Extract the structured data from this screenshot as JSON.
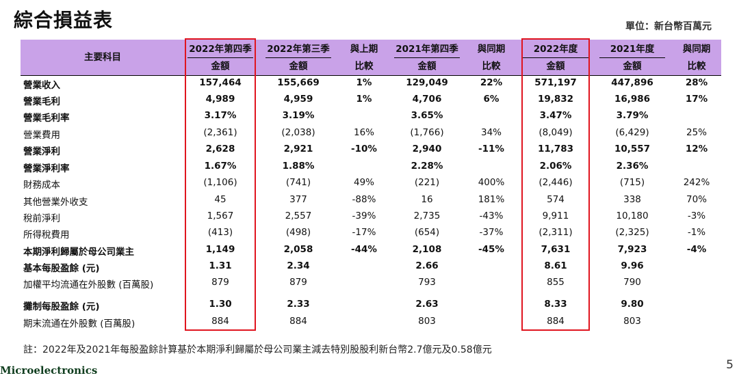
{
  "title": "綜合損益表",
  "unit": "單位：新台幣百萬元",
  "header": {
    "item": "主要科目",
    "amount": "金額",
    "columns": [
      {
        "top": "2022年第四季",
        "bottom": "金額"
      },
      {
        "top": "2022年第三季",
        "bottom": "金額"
      },
      {
        "top": "與上期",
        "bottom": "比較"
      },
      {
        "top": "2021年第四季",
        "bottom": "金額"
      },
      {
        "top": "與同期",
        "bottom": "比較"
      },
      {
        "top": "2022年度",
        "bottom": "金額"
      },
      {
        "top": "2021年度",
        "bottom": "金額"
      },
      {
        "top": "與同期",
        "bottom": "比較"
      }
    ]
  },
  "rows": [
    {
      "label": "營業收入",
      "bold": true,
      "values": [
        "157,464",
        "155,669",
        "1%",
        "129,049",
        "22%",
        "571,197",
        "447,896",
        "28%"
      ]
    },
    {
      "label": "營業毛利",
      "bold": true,
      "values": [
        "4,989",
        "4,959",
        "1%",
        "4,706",
        "6%",
        "19,832",
        "16,986",
        "17%"
      ]
    },
    {
      "label": "營業毛利率",
      "bold": true,
      "values": [
        "3.17%",
        "3.19%",
        "",
        "3.65%",
        "",
        "3.47%",
        "3.79%",
        ""
      ]
    },
    {
      "label": "營業費用",
      "bold": false,
      "values": [
        "(2,361)",
        "(2,038)",
        "16%",
        "(1,766)",
        "34%",
        "(8,049)",
        "(6,429)",
        "25%"
      ]
    },
    {
      "label": "營業淨利",
      "bold": true,
      "values": [
        "2,628",
        "2,921",
        "-10%",
        "2,940",
        "-11%",
        "11,783",
        "10,557",
        "12%"
      ]
    },
    {
      "label": "營業淨利率",
      "bold": true,
      "values": [
        "1.67%",
        "1.88%",
        "",
        "2.28%",
        "",
        "2.06%",
        "2.36%",
        ""
      ]
    },
    {
      "label": "財務成本",
      "bold": false,
      "values": [
        "(1,106)",
        "(741)",
        "49%",
        "(221)",
        "400%",
        "(2,446)",
        "(715)",
        "242%"
      ]
    },
    {
      "label": "其他營業外收支",
      "bold": false,
      "values": [
        "45",
        "377",
        "-88%",
        "16",
        "181%",
        "574",
        "338",
        "70%"
      ]
    },
    {
      "label": "稅前淨利",
      "bold": false,
      "values": [
        "1,567",
        "2,557",
        "-39%",
        "2,735",
        "-43%",
        "9,911",
        "10,180",
        "-3%"
      ]
    },
    {
      "label": "所得稅費用",
      "bold": false,
      "values": [
        "(413)",
        "(498)",
        "-17%",
        "(654)",
        "-37%",
        "(2,311)",
        "(2,325)",
        "-1%"
      ]
    },
    {
      "label": "本期淨利歸屬於母公司業主",
      "bold": true,
      "values": [
        "1,149",
        "2,058",
        "-44%",
        "2,108",
        "-45%",
        "7,631",
        "7,923",
        "-4%"
      ]
    },
    {
      "label": "基本每股盈餘 (元)",
      "bold": true,
      "values": [
        "1.31",
        "2.34",
        "",
        "2.66",
        "",
        "8.61",
        "9.96",
        ""
      ]
    },
    {
      "label": "加權平均流通在外股數 (百萬股)",
      "bold": false,
      "values": [
        "879",
        "879",
        "",
        "793",
        "",
        "855",
        "790",
        ""
      ]
    },
    {
      "label": "攤制每股盈餘 (元)",
      "bold": true,
      "values": [
        "1.30",
        "2.33",
        "",
        "2.63",
        "",
        "8.33",
        "9.80",
        ""
      ]
    },
    {
      "label": "期末流通在外股數 (百萬股)",
      "bold": false,
      "values": [
        "884",
        "884",
        "",
        "803",
        "",
        "884",
        "803",
        ""
      ]
    }
  ],
  "note": "註：2022年及2021年每股盈餘計算基於本期淨利歸屬於母公司業主減去特別股股利新台幣2.7億元及0.58億元",
  "logo": "Microelectronics",
  "page_number": "5",
  "colors": {
    "header_bg": "#c9a2e8",
    "highlight_border": "#e0141e"
  }
}
